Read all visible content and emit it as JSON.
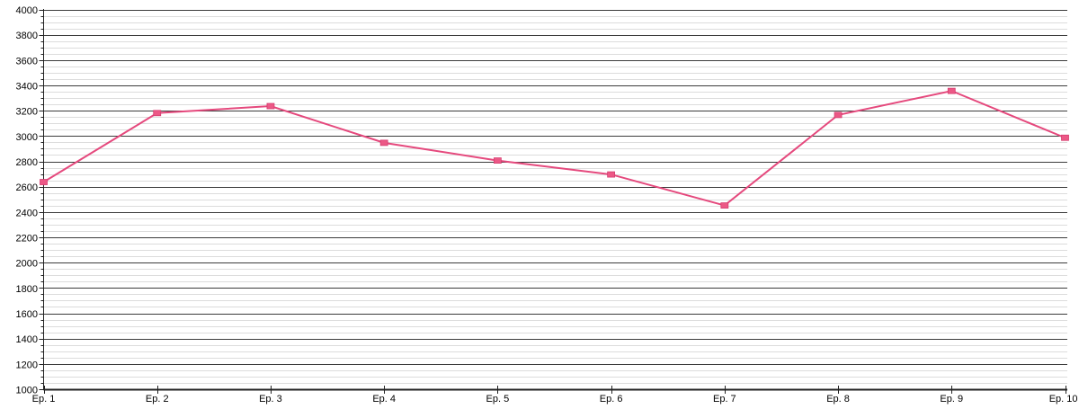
{
  "chart_data": {
    "type": "line",
    "categories": [
      "Ep. 1",
      "Ep. 2",
      "Ep. 3",
      "Ep. 4",
      "Ep. 5",
      "Ep. 6",
      "Ep. 7",
      "Ep. 8",
      "Ep. 9",
      "Ep. 10"
    ],
    "values": [
      2640,
      3185,
      3240,
      2950,
      2810,
      2700,
      2455,
      3170,
      3360,
      2990
    ],
    "xlabel": "",
    "ylabel": "",
    "ylim": [
      1000,
      4000
    ],
    "y_major_step": 200,
    "y_minor_step": 50,
    "y_tick_labels": [
      "1000",
      "1200",
      "1400",
      "1600",
      "1800",
      "2000",
      "2200",
      "2400",
      "2600",
      "2800",
      "3000",
      "3200",
      "3400",
      "3600",
      "3800",
      "4000"
    ],
    "grid": "horizontal",
    "legend_position": "none",
    "marker_shape": "square",
    "colors": {
      "background": "#ffffff",
      "series_line": "#e5497d",
      "marker_fill": "#ec5886",
      "marker_stroke": "#d63d70",
      "grid_major": "#3c3c3c",
      "grid_minor": "#dcdcdc",
      "axis": "#222222",
      "tick_label": "#000000"
    }
  }
}
